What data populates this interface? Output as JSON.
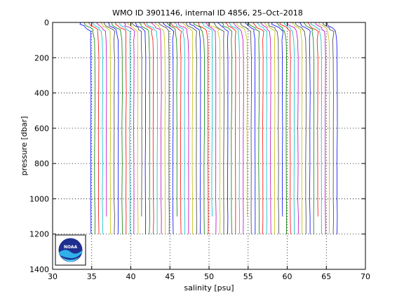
{
  "chart_data": {
    "type": "line",
    "title": "WMO ID 3901146, internal ID 4856, 25–Oct–2018",
    "xlabel": "salinity [psu]",
    "ylabel": "pressure [dbar]",
    "xlim": [
      30,
      70
    ],
    "ylim": [
      0,
      1400
    ],
    "y_reversed": true,
    "xticks": [
      30,
      35,
      40,
      45,
      50,
      55,
      60,
      65,
      70
    ],
    "yticks": [
      0,
      200,
      400,
      600,
      800,
      1000,
      1200,
      1400
    ],
    "grid": true,
    "grid_style": "dotted",
    "legend": "none",
    "colors": [
      "#0000ff",
      "#008000",
      "#ff0000",
      "#00bfbf",
      "#bf00bf",
      "#bfbf00",
      "#404040"
    ],
    "profile_offset_psu": 0.5,
    "profile_count": 64,
    "profile_base": {
      "pressure": [
        0,
        10,
        20,
        30,
        40,
        50,
        100,
        200,
        400,
        600,
        800,
        1000,
        1100,
        1200
      ],
      "salinity": [
        33.6,
        33.7,
        33.9,
        34.3,
        34.6,
        34.8,
        34.85,
        34.9,
        34.9,
        34.88,
        34.88,
        34.88,
        34.9,
        34.9
      ]
    }
  },
  "logo": {
    "name": "NOAA",
    "text": "NOAA"
  }
}
